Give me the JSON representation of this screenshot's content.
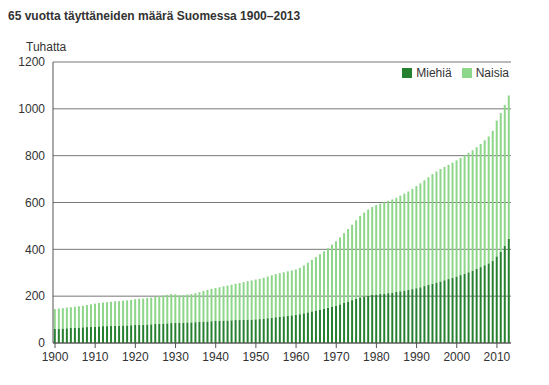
{
  "chart_data": {
    "type": "bar",
    "title": "65 vuotta täyttäneiden määrä Suomessa 1900–2013",
    "y_label": "Tuhatta",
    "stacked": true,
    "grid": true,
    "legend": "upper right",
    "ylim": [
      0,
      1200
    ],
    "yticks": [
      0,
      200,
      400,
      600,
      800,
      1000,
      1200
    ],
    "categories": [
      "1900",
      null,
      null,
      null,
      null,
      null,
      null,
      null,
      null,
      null,
      "1910",
      null,
      null,
      null,
      null,
      null,
      null,
      null,
      null,
      null,
      "1920",
      null,
      null,
      null,
      null,
      null,
      null,
      null,
      null,
      null,
      "1930",
      null,
      null,
      null,
      null,
      null,
      null,
      null,
      null,
      null,
      "1940",
      null,
      null,
      null,
      null,
      null,
      null,
      null,
      null,
      null,
      "1950",
      null,
      null,
      null,
      null,
      null,
      null,
      null,
      null,
      null,
      "1960",
      null,
      null,
      null,
      null,
      null,
      null,
      null,
      null,
      null,
      "1970",
      null,
      null,
      null,
      null,
      null,
      null,
      null,
      null,
      null,
      "1980",
      null,
      null,
      null,
      null,
      null,
      null,
      null,
      null,
      null,
      "1990",
      null,
      null,
      null,
      null,
      null,
      null,
      null,
      null,
      null,
      "2000",
      null,
      null,
      null,
      null,
      null,
      null,
      null,
      null,
      null,
      "2010",
      null,
      null,
      null
    ],
    "series": [
      {
        "name": "Miehiä",
        "color": "#25802f",
        "values": [
          60,
          61,
          62,
          63,
          64,
          65,
          66,
          67,
          68,
          69,
          70,
          71,
          72,
          72,
          73,
          74,
          74,
          75,
          75,
          76,
          77,
          78,
          78,
          79,
          80,
          81,
          82,
          83,
          84,
          85,
          86,
          86,
          87,
          88,
          88,
          89,
          90,
          91,
          92,
          93,
          94,
          95,
          96,
          96,
          97,
          98,
          98,
          99,
          100,
          100,
          101,
          102,
          104,
          106,
          108,
          110,
          112,
          114,
          116,
          118,
          120,
          123,
          127,
          131,
          135,
          139,
          143,
          147,
          151,
          156,
          160,
          165,
          171,
          177,
          183,
          189,
          195,
          199,
          202,
          205,
          207,
          209,
          211,
          213,
          215,
          218,
          221,
          224,
          227,
          230,
          234,
          238,
          243,
          248,
          253,
          258,
          263,
          268,
          273,
          278,
          284,
          290,
          296,
          302,
          309,
          316,
          324,
          332,
          340,
          350,
          370,
          390,
          415,
          445
        ]
      },
      {
        "name": "Naisia",
        "color": "#8dd68a",
        "values": [
          85,
          86,
          87,
          88,
          89,
          90,
          91,
          92,
          94,
          96,
          98,
          100,
          101,
          102,
          103,
          104,
          105,
          106,
          107,
          108,
          110,
          111,
          112,
          113,
          114,
          116,
          118,
          120,
          122,
          124,
          122,
          118,
          118,
          119,
          121,
          124,
          127,
          131,
          135,
          138,
          141,
          143,
          146,
          149,
          152,
          155,
          158,
          161,
          164,
          167,
          170,
          172,
          175,
          178,
          181,
          184,
          186,
          188,
          190,
          192,
          194,
          198,
          204,
          212,
          220,
          228,
          236,
          244,
          254,
          264,
          274,
          286,
          298,
          310,
          322,
          335,
          348,
          358,
          368,
          376,
          382,
          386,
          390,
          394,
          398,
          402,
          408,
          414,
          420,
          428,
          436,
          444,
          452,
          460,
          468,
          474,
          480,
          484,
          488,
          492,
          496,
          500,
          506,
          510,
          514,
          520,
          526,
          534,
          542,
          556,
          580,
          592,
          602,
          612
        ]
      }
    ]
  }
}
